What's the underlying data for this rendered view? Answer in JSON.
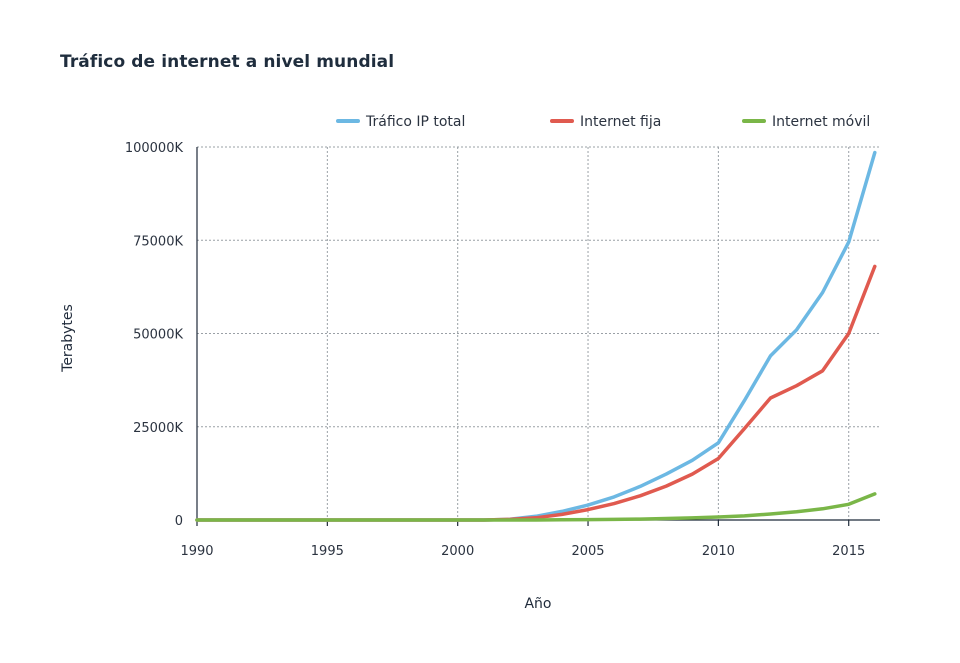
{
  "chart_data": {
    "type": "line",
    "title": "Tráfico de internet a nivel mundial",
    "xlabel": "Año",
    "ylabel": "Terabytes",
    "xlim": [
      1990,
      2016.2
    ],
    "ylim": [
      0,
      100000
    ],
    "x_ticks": [
      1990,
      1995,
      2000,
      2005,
      2010,
      2015
    ],
    "x_tick_labels": [
      "1990",
      "1995",
      "2000",
      "2005",
      "2010",
      "2015"
    ],
    "y_ticks": [
      0,
      25000,
      50000,
      75000,
      100000
    ],
    "y_tick_labels": [
      "0",
      "25000K",
      "50000K",
      "75000K",
      "100000K"
    ],
    "grid": true,
    "legend_position": "top-right",
    "x": [
      1990,
      2000,
      2001,
      2002,
      2003,
      2004,
      2005,
      2006,
      2007,
      2008,
      2009,
      2010,
      2011,
      2012,
      2013,
      2014,
      2015,
      2016
    ],
    "series": [
      {
        "name": "Tráfico IP total",
        "color": "#6cb8e3",
        "values": [
          0,
          0,
          0,
          200,
          1000,
          2300,
          4000,
          6200,
          9000,
          12300,
          16000,
          20700,
          32000,
          44000,
          51000,
          61000,
          74500,
          98500
        ]
      },
      {
        "name": "Internet fija",
        "color": "#e05a4f",
        "values": [
          0,
          0,
          0,
          150,
          600,
          1500,
          2800,
          4400,
          6500,
          9100,
          12300,
          16500,
          24500,
          32700,
          36000,
          40000,
          50000,
          68000
        ]
      },
      {
        "name": "Internet móvil",
        "color": "#7ab648",
        "values": [
          0,
          0,
          0,
          0,
          0,
          50,
          100,
          150,
          250,
          400,
          550,
          800,
          1100,
          1600,
          2200,
          3000,
          4200,
          7000
        ]
      }
    ]
  }
}
